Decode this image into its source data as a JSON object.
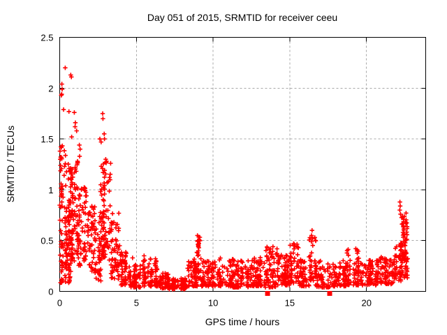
{
  "chart_data": {
    "type": "scatter",
    "title": "Day 051 of 2015, SRMTID for receiver ceeu",
    "xlabel": "GPS time / hours",
    "ylabel": "SRMTID / TECUs",
    "xlim": [
      0,
      23.86
    ],
    "ylim": [
      0,
      2.5
    ],
    "xticks": [
      0,
      5,
      10,
      15,
      20
    ],
    "xtick_labels": [
      "0",
      "5",
      "10",
      "15",
      "20"
    ],
    "yticks": [
      0,
      0.5,
      1,
      1.5,
      2,
      2.5
    ],
    "ytick_labels": [
      "0",
      "0.5",
      "1",
      "1.5",
      "2",
      "2.5"
    ],
    "grid": true,
    "legend": "none",
    "marker": "plus-cross",
    "marker_color": "#ff0000",
    "grid_color": "#a8a8a8",
    "border_color": "#000000",
    "background_color": "#ffffff",
    "seed": 2015051,
    "outlier_points": [
      [
        0.36,
        2.2
      ],
      [
        0.72,
        2.13
      ],
      [
        0.76,
        2.11
      ],
      [
        0.14,
        2.04
      ],
      [
        0.16,
        1.99
      ],
      [
        0.13,
        1.94
      ],
      [
        0.1,
        1.93
      ],
      [
        0.25,
        1.79
      ],
      [
        0.6,
        1.77
      ],
      [
        0.95,
        1.76
      ],
      [
        2.8,
        1.75
      ],
      [
        2.82,
        1.7
      ],
      [
        1.02,
        1.66
      ],
      [
        1.0,
        1.62
      ],
      [
        1.1,
        1.58
      ],
      [
        2.9,
        1.55
      ],
      [
        0.78,
        1.52
      ],
      [
        2.92,
        1.5
      ],
      [
        2.62,
        1.5
      ],
      [
        2.7,
        1.47
      ],
      [
        1.28,
        1.44
      ],
      [
        1.33,
        1.4
      ],
      [
        0.02,
        1.38
      ],
      [
        1.3,
        1.33
      ],
      [
        0.03,
        1.3
      ],
      [
        3.0,
        1.3
      ],
      [
        3.05,
        1.28
      ],
      [
        0.05,
        1.24
      ],
      [
        8.98,
        0.55
      ],
      [
        9.0,
        0.5
      ],
      [
        9.02,
        0.46
      ],
      [
        16.45,
        0.6
      ],
      [
        16.42,
        0.55
      ],
      [
        16.48,
        0.52
      ],
      [
        22.18,
        0.88
      ],
      [
        22.2,
        0.84
      ],
      [
        22.17,
        0.8
      ],
      [
        22.22,
        0.76
      ],
      [
        4.75,
        0.33
      ],
      [
        5.5,
        0.35
      ],
      [
        5.45,
        0.3
      ],
      [
        13.9,
        0.44
      ],
      [
        15.25,
        0.47
      ],
      [
        19.3,
        0.42
      ],
      [
        21.95,
        0.44
      ]
    ],
    "square_points": [
      [
        13.55,
        -0.02
      ],
      [
        17.6,
        -0.02
      ]
    ],
    "density_segments": [
      {
        "h0": 0.0,
        "h1": 0.35,
        "n": 55,
        "y0": 0.08,
        "y1": 1.45,
        "pow": 1.1
      },
      {
        "h0": 0.35,
        "h1": 1.15,
        "n": 150,
        "y0": 0.3,
        "y1": 1.28,
        "pow": 1.15
      },
      {
        "h0": 0.35,
        "h1": 1.15,
        "n": 25,
        "y0": 0.08,
        "y1": 0.3,
        "pow": 1.0
      },
      {
        "h0": 1.15,
        "h1": 1.75,
        "n": 70,
        "y0": 0.25,
        "y1": 1.05,
        "pow": 1.2
      },
      {
        "h0": 1.75,
        "h1": 2.3,
        "n": 45,
        "y0": 0.2,
        "y1": 0.9,
        "pow": 1.2
      },
      {
        "h0": 2.3,
        "h1": 2.65,
        "n": 40,
        "y0": 0.1,
        "y1": 0.75,
        "pow": 1.1
      },
      {
        "h0": 2.65,
        "h1": 3.35,
        "n": 90,
        "y0": 0.3,
        "y1": 1.35,
        "pow": 1.1
      },
      {
        "h0": 3.35,
        "h1": 3.95,
        "n": 60,
        "y0": 0.12,
        "y1": 0.8,
        "pow": 1.5
      },
      {
        "h0": 3.95,
        "h1": 4.45,
        "n": 45,
        "y0": 0.06,
        "y1": 0.4,
        "pow": 1.6
      },
      {
        "h0": 4.45,
        "h1": 5.25,
        "n": 65,
        "y0": 0.04,
        "y1": 0.28,
        "pow": 1.6
      },
      {
        "h0": 5.25,
        "h1": 6.35,
        "n": 85,
        "y0": 0.05,
        "y1": 0.33,
        "pow": 1.7
      },
      {
        "h0": 6.35,
        "h1": 7.1,
        "n": 60,
        "y0": 0.03,
        "y1": 0.18,
        "pow": 1.4
      },
      {
        "h0": 7.1,
        "h1": 8.3,
        "n": 90,
        "y0": 0.02,
        "y1": 0.13,
        "pow": 1.3
      },
      {
        "h0": 8.3,
        "h1": 8.95,
        "n": 60,
        "y0": 0.05,
        "y1": 0.32,
        "pow": 1.5
      },
      {
        "h0": 8.95,
        "h1": 9.2,
        "n": 30,
        "y0": 0.12,
        "y1": 0.54,
        "pow": 1.1
      },
      {
        "h0": 9.2,
        "h1": 10.3,
        "n": 85,
        "y0": 0.05,
        "y1": 0.3,
        "pow": 1.7
      },
      {
        "h0": 10.3,
        "h1": 11.3,
        "n": 85,
        "y0": 0.05,
        "y1": 0.33,
        "pow": 1.7
      },
      {
        "h0": 11.3,
        "h1": 12.5,
        "n": 95,
        "y0": 0.04,
        "y1": 0.31,
        "pow": 1.7
      },
      {
        "h0": 12.5,
        "h1": 13.4,
        "n": 75,
        "y0": 0.05,
        "y1": 0.34,
        "pow": 1.6
      },
      {
        "h0": 13.4,
        "h1": 14.35,
        "n": 85,
        "y0": 0.04,
        "y1": 0.44,
        "pow": 1.8
      },
      {
        "h0": 14.35,
        "h1": 15.05,
        "n": 60,
        "y0": 0.06,
        "y1": 0.36,
        "pow": 1.5
      },
      {
        "h0": 15.05,
        "h1": 15.65,
        "n": 50,
        "y0": 0.08,
        "y1": 0.48,
        "pow": 1.4
      },
      {
        "h0": 15.65,
        "h1": 16.3,
        "n": 55,
        "y0": 0.05,
        "y1": 0.34,
        "pow": 1.5
      },
      {
        "h0": 16.3,
        "h1": 16.65,
        "n": 28,
        "y0": 0.1,
        "y1": 0.62,
        "pow": 1.3
      },
      {
        "h0": 16.65,
        "h1": 17.65,
        "n": 70,
        "y0": 0.04,
        "y1": 0.3,
        "pow": 1.6
      },
      {
        "h0": 17.65,
        "h1": 18.65,
        "n": 75,
        "y0": 0.05,
        "y1": 0.31,
        "pow": 1.5
      },
      {
        "h0": 18.65,
        "h1": 19.55,
        "n": 70,
        "y0": 0.06,
        "y1": 0.43,
        "pow": 1.6
      },
      {
        "h0": 19.55,
        "h1": 20.65,
        "n": 80,
        "y0": 0.06,
        "y1": 0.31,
        "pow": 1.5
      },
      {
        "h0": 20.65,
        "h1": 21.85,
        "n": 90,
        "y0": 0.07,
        "y1": 0.34,
        "pow": 1.5
      },
      {
        "h0": 21.85,
        "h1": 22.35,
        "n": 50,
        "y0": 0.1,
        "y1": 0.48,
        "pow": 1.2
      },
      {
        "h0": 22.3,
        "h1": 22.65,
        "n": 55,
        "y0": 0.3,
        "y1": 0.78,
        "pow": 1.0
      },
      {
        "h0": 22.45,
        "h1": 22.7,
        "n": 20,
        "y0": 0.12,
        "y1": 0.35,
        "pow": 1.0
      }
    ]
  }
}
